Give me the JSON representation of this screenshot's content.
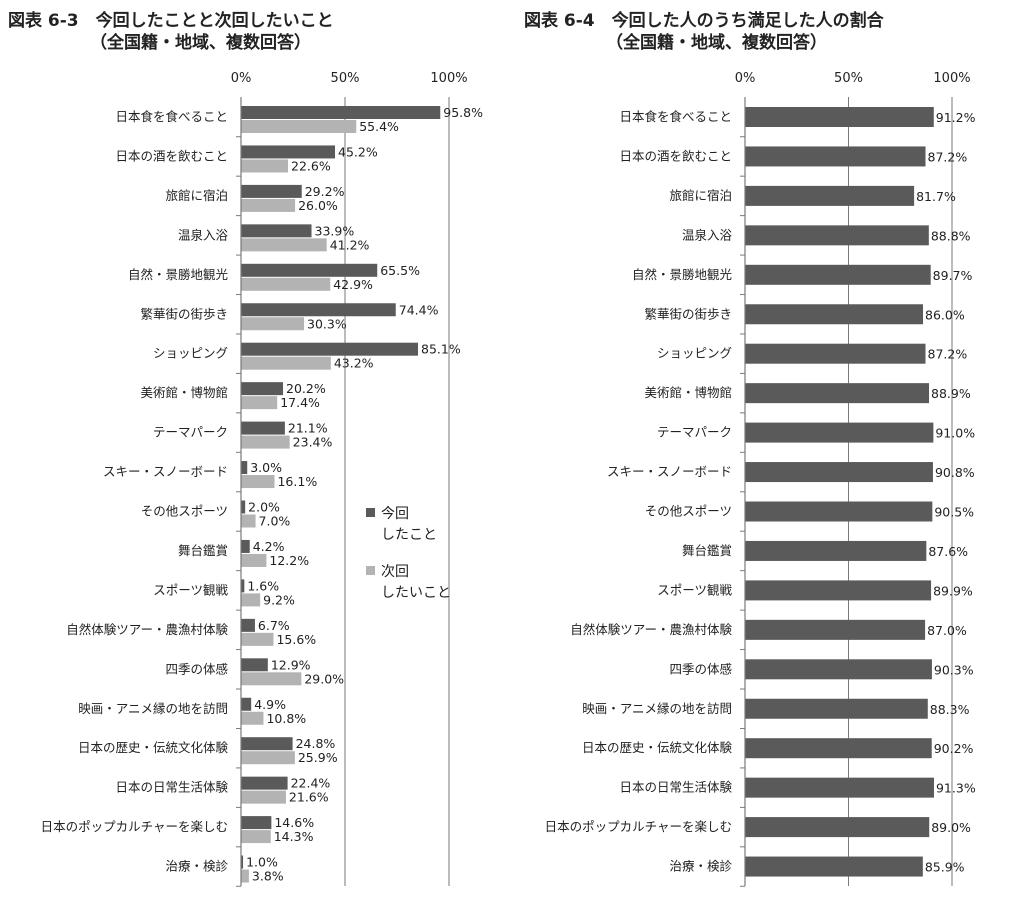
{
  "chart_data": [
    {
      "type": "bar",
      "orientation": "horizontal",
      "title": "図表 6-3　今回したことと次回したいこと",
      "subtitle": "（全国籍・地域、複数回答）",
      "xlim": [
        0,
        100
      ],
      "xticks": [
        "0%",
        "50%",
        "100%"
      ],
      "grid": true,
      "legend_position": "right-middle",
      "categories": [
        "日本食を食べること",
        "日本の酒を飲むこと",
        "旅館に宿泊",
        "温泉入浴",
        "自然・景勝地観光",
        "繁華街の街歩き",
        "ショッピング",
        "美術館・博物館",
        "テーマパーク",
        "スキー・スノーボード",
        "その他スポーツ",
        "舞台鑑賞",
        "スポーツ観戦",
        "自然体験ツアー・農漁村体験",
        "四季の体感",
        "映画・アニメ縁の地を訪問",
        "日本の歴史・伝統文化体験",
        "日本の日常生活体験",
        "日本のポップカルチャーを楽しむ",
        "治療・検診"
      ],
      "series": [
        {
          "name": "今回\nしたこと",
          "color": "#5a5a5a",
          "values": [
            95.8,
            45.2,
            29.2,
            33.9,
            65.5,
            74.4,
            85.1,
            20.2,
            21.1,
            3.0,
            2.0,
            4.2,
            1.6,
            6.7,
            12.9,
            4.9,
            24.8,
            22.4,
            14.6,
            1.0
          ],
          "labels": [
            "95.8%",
            "45.2%",
            "29.2%",
            "33.9%",
            "65.5%",
            "74.4%",
            "85.1%",
            "20.2%",
            "21.1%",
            "3.0%",
            "2.0%",
            "4.2%",
            "1.6%",
            "6.7%",
            "12.9%",
            "4.9%",
            "24.8%",
            "22.4%",
            "14.6%",
            "1.0%"
          ]
        },
        {
          "name": "次回\nしたいこと",
          "color": "#b3b3b3",
          "values": [
            55.4,
            22.6,
            26.0,
            41.2,
            42.9,
            30.3,
            43.2,
            17.4,
            23.4,
            16.1,
            7.0,
            12.2,
            9.2,
            15.6,
            29.0,
            10.8,
            25.9,
            21.6,
            14.3,
            3.8
          ],
          "labels": [
            "55.4%",
            "22.6%",
            "26.0%",
            "41.2%",
            "42.9%",
            "30.3%",
            "43.2%",
            "17.4%",
            "23.4%",
            "16.1%",
            "7.0%",
            "12.2%",
            "9.2%",
            "15.6%",
            "29.0%",
            "10.8%",
            "25.9%",
            "21.6%",
            "14.3%",
            "3.8%"
          ]
        }
      ]
    },
    {
      "type": "bar",
      "orientation": "horizontal",
      "title": "図表 6-4　今回した人のうち満足した人の割合",
      "subtitle": "（全国籍・地域、複数回答）",
      "xlim": [
        0,
        100
      ],
      "xticks": [
        "0%",
        "50%",
        "100%"
      ],
      "grid": true,
      "categories": [
        "日本食を食べること",
        "日本の酒を飲むこと",
        "旅館に宿泊",
        "温泉入浴",
        "自然・景勝地観光",
        "繁華街の街歩き",
        "ショッピング",
        "美術館・博物館",
        "テーマパーク",
        "スキー・スノーボード",
        "その他スポーツ",
        "舞台鑑賞",
        "スポーツ観戦",
        "自然体験ツアー・農漁村体験",
        "四季の体感",
        "映画・アニメ縁の地を訪問",
        "日本の歴史・伝統文化体験",
        "日本の日常生活体験",
        "日本のポップカルチャーを楽しむ",
        "治療・検診"
      ],
      "series": [
        {
          "color": "#5a5a5a",
          "values": [
            91.2,
            87.2,
            81.7,
            88.8,
            89.7,
            86.0,
            87.2,
            88.9,
            91.0,
            90.8,
            90.5,
            87.6,
            89.9,
            87.0,
            90.3,
            88.3,
            90.2,
            91.3,
            89.0,
            85.9
          ],
          "labels": [
            "91.2%",
            "87.2%",
            "81.7%",
            "88.8%",
            "89.7%",
            "86.0%",
            "87.2%",
            "88.9%",
            "91.0%",
            "90.8%",
            "90.5%",
            "87.6%",
            "89.9%",
            "87.0%",
            "90.3%",
            "88.3%",
            "90.2%",
            "91.3%",
            "89.0%",
            "85.9%"
          ]
        }
      ]
    }
  ]
}
